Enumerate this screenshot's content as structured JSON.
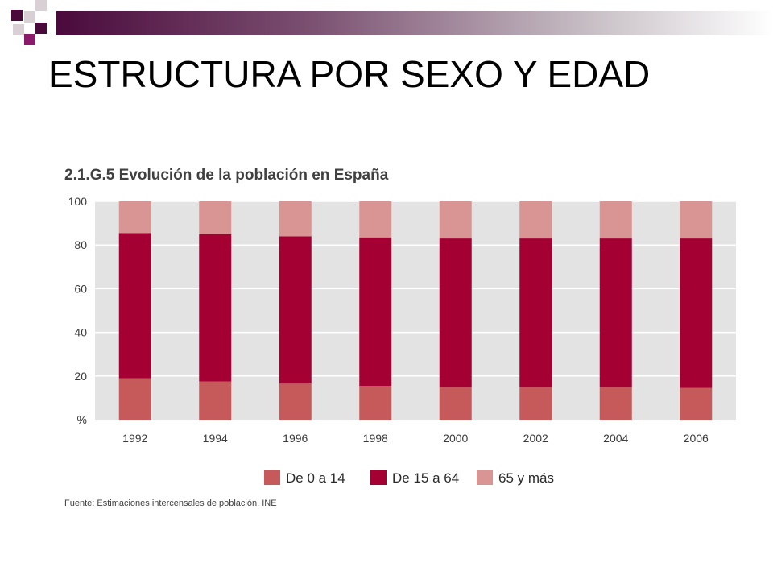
{
  "slide": {
    "title": "ESTRUCTURA POR SEXO Y EDAD"
  },
  "chart_data": {
    "type": "bar",
    "stacked": true,
    "title": "2.1.G.5 Evolución de la población en España",
    "y_unit_label": "%",
    "ylim": [
      0,
      100
    ],
    "yticks": [
      20,
      40,
      60,
      80,
      100
    ],
    "grid": true,
    "legend_position": "bottom",
    "categories": [
      "1992",
      "1994",
      "1996",
      "1998",
      "2000",
      "2002",
      "2004",
      "2006"
    ],
    "series": [
      {
        "name": "De 0 a 14",
        "color": "#c65a5a",
        "values": [
          19,
          17.5,
          16.5,
          15.5,
          15,
          15,
          15,
          14.5
        ]
      },
      {
        "name": "De 15 a 64",
        "color": "#a50033",
        "values": [
          66.5,
          67.5,
          67.5,
          68,
          68,
          68,
          68,
          68.5
        ]
      },
      {
        "name": "65 y más",
        "color": "#d99593",
        "values": [
          14.5,
          15,
          16,
          16.5,
          17,
          17,
          17,
          17
        ]
      }
    ],
    "source": "Fuente: Estimaciones intercensales de población. INE"
  },
  "colors": {
    "plot_background": "#e3e3e3",
    "gridline": "#ffffff"
  }
}
